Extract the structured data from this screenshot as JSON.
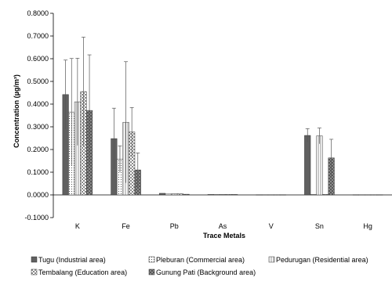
{
  "chart_data": {
    "type": "bar",
    "xlabel": "Trace Metals",
    "ylabel": "Concentration (µg/m³)",
    "ylim": [
      -0.1,
      0.8
    ],
    "yticks": [
      "-0.1000",
      "0.0000",
      "0.1000",
      "0.2000",
      "0.3000",
      "0.4000",
      "0.5000",
      "0.6000",
      "0.7000",
      "0.8000"
    ],
    "grid": false,
    "legend_position": "bottom",
    "categories": [
      "K",
      "Fe",
      "Pb",
      "As",
      "V",
      "Sn",
      "Hg"
    ],
    "series": [
      {
        "name": "Tugu (Industrial area)",
        "pattern": "solid-gray",
        "values": [
          0.442,
          0.248,
          0.007,
          0.002,
          0.001,
          0.262,
          0.001
        ],
        "errors": [
          0.152,
          0.134,
          0.002,
          0.0005,
          0.0003,
          0.03,
          0.0003
        ]
      },
      {
        "name": "Pleburan (Commercial area)",
        "pattern": "dots",
        "values": [
          0.365,
          0.158,
          0.004,
          0.002,
          0.001,
          0.002,
          0.001
        ],
        "errors": [
          0.236,
          0.058,
          0.001,
          0.0005,
          0.0003,
          0.001,
          0.0003
        ]
      },
      {
        "name": "Pedurugan (Residential area)",
        "pattern": "vertical-lines",
        "values": [
          0.41,
          0.32,
          0.005,
          0.002,
          0.001,
          0.26,
          0.001
        ],
        "errors": [
          0.192,
          0.267,
          0.001,
          0.0005,
          0.0003,
          0.035,
          0.0003
        ]
      },
      {
        "name": "Tembalang (Education area)",
        "pattern": "checker",
        "values": [
          0.455,
          0.277,
          0.005,
          0.002,
          0.001,
          0.002,
          0.001
        ],
        "errors": [
          0.24,
          0.108,
          0.001,
          0.0005,
          0.0003,
          0.001,
          0.0003
        ]
      },
      {
        "name": "Gunung Pati (Background area)",
        "pattern": "crosshatch",
        "values": [
          0.372,
          0.11,
          0.003,
          0.002,
          0.001,
          0.163,
          0.001
        ],
        "errors": [
          0.245,
          0.075,
          0.001,
          0.0005,
          0.0003,
          0.082,
          0.0003
        ]
      }
    ]
  }
}
